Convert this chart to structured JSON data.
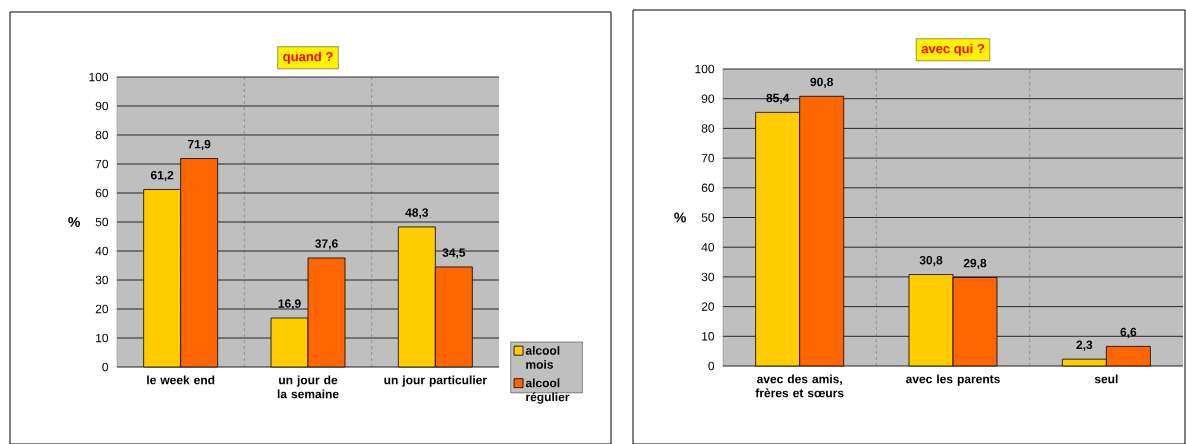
{
  "chart_data": [
    {
      "type": "bar",
      "title": "quand ?",
      "ylabel": "%",
      "categories": [
        "le week end",
        "un jour de la semaine",
        "un jour particulier"
      ],
      "series": [
        {
          "name": "alcool mois",
          "color": "#ffcc00",
          "values": [
            61.2,
            16.9,
            48.3
          ],
          "value_labels": [
            "61,2",
            "16,9",
            "48,3"
          ]
        },
        {
          "name": "alcool régulier",
          "color": "#ff6600",
          "values": [
            71.9,
            37.6,
            34.5
          ],
          "value_labels": [
            "71,9",
            "37,6",
            "34,5"
          ]
        }
      ],
      "ylim": [
        0,
        100
      ],
      "yticks": [
        0,
        10,
        20,
        30,
        40,
        50,
        60,
        70,
        80,
        90,
        100
      ],
      "grid": true,
      "legend": "bottom right"
    },
    {
      "type": "bar",
      "title": "avec qui ?",
      "ylabel": "%",
      "categories": [
        "avec des amis, frères et sœurs",
        "avec les parents",
        "seul"
      ],
      "series": [
        {
          "color": "#ffcc00",
          "values": [
            85.4,
            30.8,
            2.3
          ],
          "value_labels": [
            "85,4",
            "30,8",
            "2,3"
          ]
        },
        {
          "color": "#ff6600",
          "values": [
            90.8,
            29.8,
            6.6
          ],
          "value_labels": [
            "90,8",
            "29,8",
            "6,6"
          ]
        }
      ],
      "ylim": [
        0,
        100
      ],
      "yticks": [
        0,
        10,
        20,
        30,
        40,
        50,
        60,
        70,
        80,
        90,
        100
      ],
      "grid": true
    }
  ]
}
